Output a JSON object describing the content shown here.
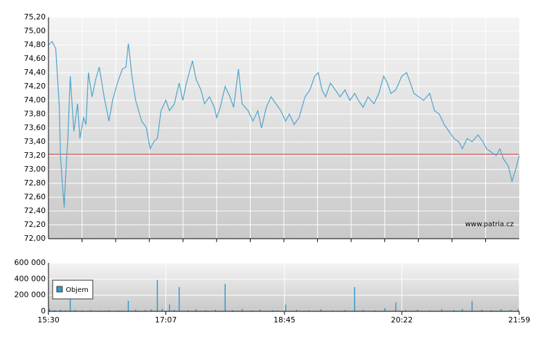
{
  "chart_data": [
    {
      "type": "line",
      "color": "#4ba3cc",
      "xlim": [
        "15:30",
        "21:59"
      ],
      "ylim": [
        72.0,
        75.2
      ],
      "yticks": [
        {
          "value": 72.0,
          "label": "72,00"
        },
        {
          "value": 72.2,
          "label": "72,20"
        },
        {
          "value": 72.4,
          "label": "72,40"
        },
        {
          "value": 72.6,
          "label": "72,60"
        },
        {
          "value": 72.8,
          "label": "72,80"
        },
        {
          "value": 73.0,
          "label": "73,00"
        },
        {
          "value": 73.2,
          "label": "73,20"
        },
        {
          "value": 73.4,
          "label": "73,40"
        },
        {
          "value": 73.6,
          "label": "73,60"
        },
        {
          "value": 73.8,
          "label": "73,80"
        },
        {
          "value": 74.0,
          "label": "74,00"
        },
        {
          "value": 74.2,
          "label": "74,20"
        },
        {
          "value": 74.4,
          "label": "74,40"
        },
        {
          "value": 74.6,
          "label": "74,60"
        },
        {
          "value": 74.8,
          "label": "74,80"
        },
        {
          "value": 75.0,
          "label": "75,00"
        },
        {
          "value": 75.2,
          "label": "75,20"
        }
      ],
      "reference_line": {
        "value": 73.22,
        "color": "#cc3333"
      },
      "watermark": "www.patria.cz",
      "x": [
        "15:30",
        "15:33",
        "15:36",
        "15:39",
        "15:40",
        "15:43",
        "15:44",
        "15:46",
        "15:48",
        "15:51",
        "15:54",
        "15:56",
        "15:59",
        "16:01",
        "16:03",
        "16:06",
        "16:09",
        "16:12",
        "16:16",
        "16:20",
        "16:23",
        "16:27",
        "16:31",
        "16:34",
        "16:36",
        "16:39",
        "16:42",
        "16:47",
        "16:51",
        "16:54",
        "16:57",
        "17:00",
        "17:03",
        "17:07",
        "17:10",
        "17:14",
        "17:18",
        "17:21",
        "17:24",
        "17:29",
        "17:32",
        "17:36",
        "17:39",
        "17:43",
        "17:47",
        "17:49",
        "17:52",
        "17:56",
        "18:00",
        "18:03",
        "18:07",
        "18:10",
        "18:15",
        "18:19",
        "18:23",
        "18:26",
        "18:30",
        "18:34",
        "18:38",
        "18:42",
        "18:46",
        "18:49",
        "18:53",
        "18:57",
        "19:02",
        "19:06",
        "19:10",
        "19:13",
        "19:16",
        "19:19",
        "19:23",
        "19:27",
        "19:31",
        "19:35",
        "19:39",
        "19:43",
        "19:46",
        "19:50",
        "19:54",
        "19:59",
        "20:03",
        "20:07",
        "20:10",
        "20:13",
        "20:17",
        "20:22",
        "20:26",
        "20:29",
        "20:32",
        "20:36",
        "20:40",
        "20:45",
        "20:49",
        "20:53",
        "20:57",
        "21:01",
        "21:05",
        "21:09",
        "21:12",
        "21:16",
        "21:20",
        "21:25",
        "21:29",
        "21:32",
        "21:36",
        "21:40",
        "21:43",
        "21:46",
        "21:50",
        "21:53",
        "21:56",
        "21:59"
      ],
      "values": [
        74.8,
        74.85,
        74.75,
        73.9,
        73.15,
        72.45,
        72.85,
        73.45,
        74.35,
        73.55,
        73.95,
        73.45,
        73.75,
        73.65,
        74.4,
        74.05,
        74.3,
        74.48,
        74.05,
        73.7,
        74.0,
        74.25,
        74.45,
        74.48,
        74.82,
        74.35,
        74.0,
        73.7,
        73.6,
        73.3,
        73.4,
        73.45,
        73.85,
        74.0,
        73.85,
        73.95,
        74.25,
        74.0,
        74.25,
        74.57,
        74.3,
        74.15,
        73.95,
        74.05,
        73.9,
        73.75,
        73.9,
        74.2,
        74.05,
        73.9,
        74.45,
        73.95,
        73.85,
        73.7,
        73.85,
        73.6,
        73.9,
        74.05,
        73.95,
        73.85,
        73.7,
        73.8,
        73.65,
        73.75,
        74.05,
        74.15,
        74.35,
        74.4,
        74.15,
        74.05,
        74.25,
        74.15,
        74.05,
        74.15,
        74.0,
        74.1,
        74.0,
        73.9,
        74.05,
        73.95,
        74.1,
        74.35,
        74.25,
        74.1,
        74.15,
        74.35,
        74.4,
        74.25,
        74.1,
        74.05,
        74.0,
        74.1,
        73.85,
        73.8,
        73.65,
        73.55,
        73.45,
        73.4,
        73.3,
        73.45,
        73.4,
        73.5,
        73.4,
        73.3,
        73.25,
        73.2,
        73.3,
        73.15,
        73.05,
        72.83,
        73.0,
        73.2
      ]
    },
    {
      "type": "bar",
      "xlim": [
        "15:30",
        "21:59"
      ],
      "xticks": [
        "15:30",
        "17:07",
        "18:45",
        "20:22",
        "21:59"
      ],
      "ylim": [
        0,
        600000
      ],
      "yticks": [
        0,
        {
          "value": 200000,
          "label": "200 000"
        },
        {
          "value": 400000,
          "label": "400 000"
        },
        {
          "value": 600000,
          "label": "600 000"
        }
      ],
      "legend": "top-left",
      "series": [
        {
          "name": "Objem",
          "color": "#3399cc",
          "x": [
            "15:31",
            "15:35",
            "15:40",
            "15:44",
            "15:48",
            "15:52",
            "15:58",
            "16:05",
            "16:12",
            "16:20",
            "16:28",
            "16:36",
            "16:42",
            "16:50",
            "16:55",
            "17:00",
            "17:04",
            "17:10",
            "17:14",
            "17:18",
            "17:25",
            "17:32",
            "17:40",
            "17:48",
            "17:56",
            "18:02",
            "18:10",
            "18:18",
            "18:25",
            "18:35",
            "18:46",
            "18:55",
            "19:05",
            "19:15",
            "19:25",
            "19:35",
            "19:43",
            "19:50",
            "20:00",
            "20:08",
            "20:17",
            "20:25",
            "20:35",
            "20:45",
            "20:55",
            "21:05",
            "21:12",
            "21:20",
            "21:28",
            "21:36",
            "21:44",
            "21:52",
            "21:58"
          ],
          "values": [
            30000,
            15000,
            20000,
            12000,
            150000,
            20000,
            10000,
            18000,
            8000,
            12000,
            10000,
            130000,
            20000,
            15000,
            25000,
            390000,
            30000,
            85000,
            20000,
            300000,
            15000,
            25000,
            12000,
            20000,
            340000,
            15000,
            30000,
            12000,
            20000,
            15000,
            85000,
            20000,
            12000,
            25000,
            10000,
            15000,
            300000,
            20000,
            12000,
            40000,
            110000,
            15000,
            20000,
            10000,
            25000,
            15000,
            30000,
            130000,
            20000,
            15000,
            25000,
            20000,
            30000
          ]
        }
      ]
    }
  ]
}
